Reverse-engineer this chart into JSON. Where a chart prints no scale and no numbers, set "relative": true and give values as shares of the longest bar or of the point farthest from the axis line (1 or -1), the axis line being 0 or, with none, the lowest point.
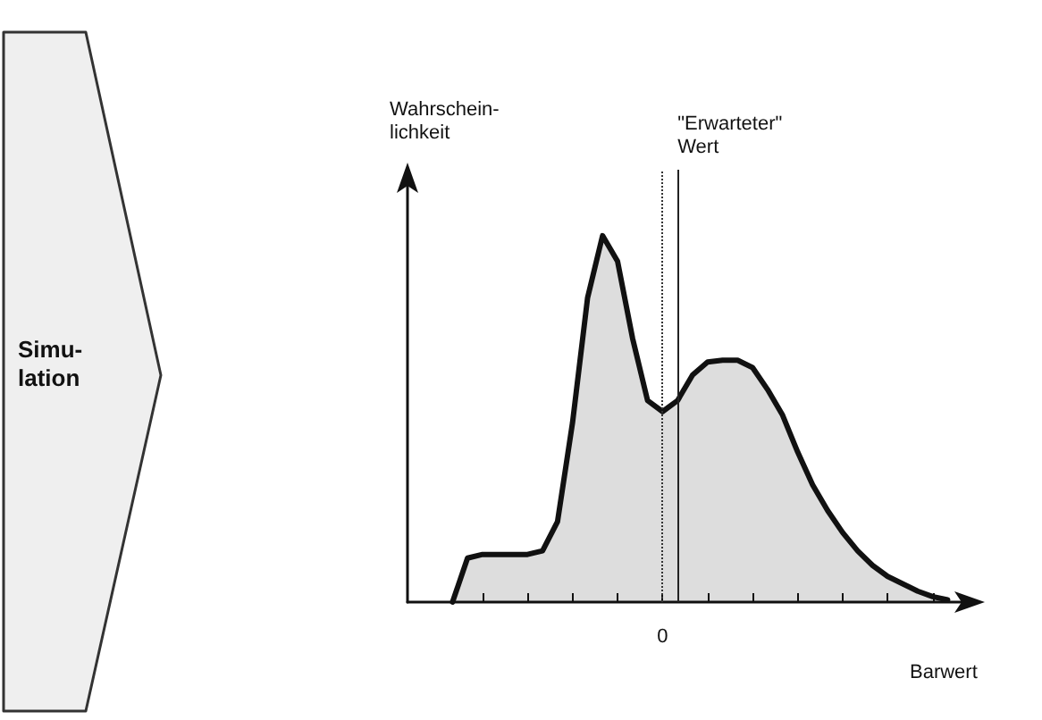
{
  "chart_data": {
    "type": "area",
    "relative": true,
    "xlabel": "Barwert",
    "ylabel": "Wahrschein-\nlichkeit",
    "annotations": [
      "Simu-\nlation",
      "\"Erwarteter\"\nWert",
      "0"
    ],
    "categories": [
      null,
      null,
      null,
      null,
      null,
      null,
      null,
      null,
      null,
      null,
      null,
      null,
      null,
      null,
      null,
      null,
      null,
      null,
      null,
      null,
      null,
      null,
      null,
      null,
      null,
      null,
      null,
      null,
      null,
      null,
      null,
      null,
      null,
      null,
      null,
      null,
      null,
      null,
      null
    ],
    "grid": false,
    "marker": "none",
    "line_style": "solid",
    "series": [
      {
        "color": "#111111",
        "values": [
          null,
          null,
          null,
          0,
          0.12,
          0.13,
          0.13,
          0.13,
          0.13,
          0.14,
          0.22,
          0.49,
          0.83,
          1,
          0.93,
          0.72,
          0.55,
          0.52,
          0.55,
          0.62,
          0.655,
          0.66,
          0.66,
          0.64,
          0.58,
          0.51,
          0.41,
          0.32,
          0.25,
          0.19,
          0.14,
          0.1,
          0.07,
          0.05,
          0.03,
          0.015,
          0.006,
          null,
          null
        ]
      }
    ]
  }
}
